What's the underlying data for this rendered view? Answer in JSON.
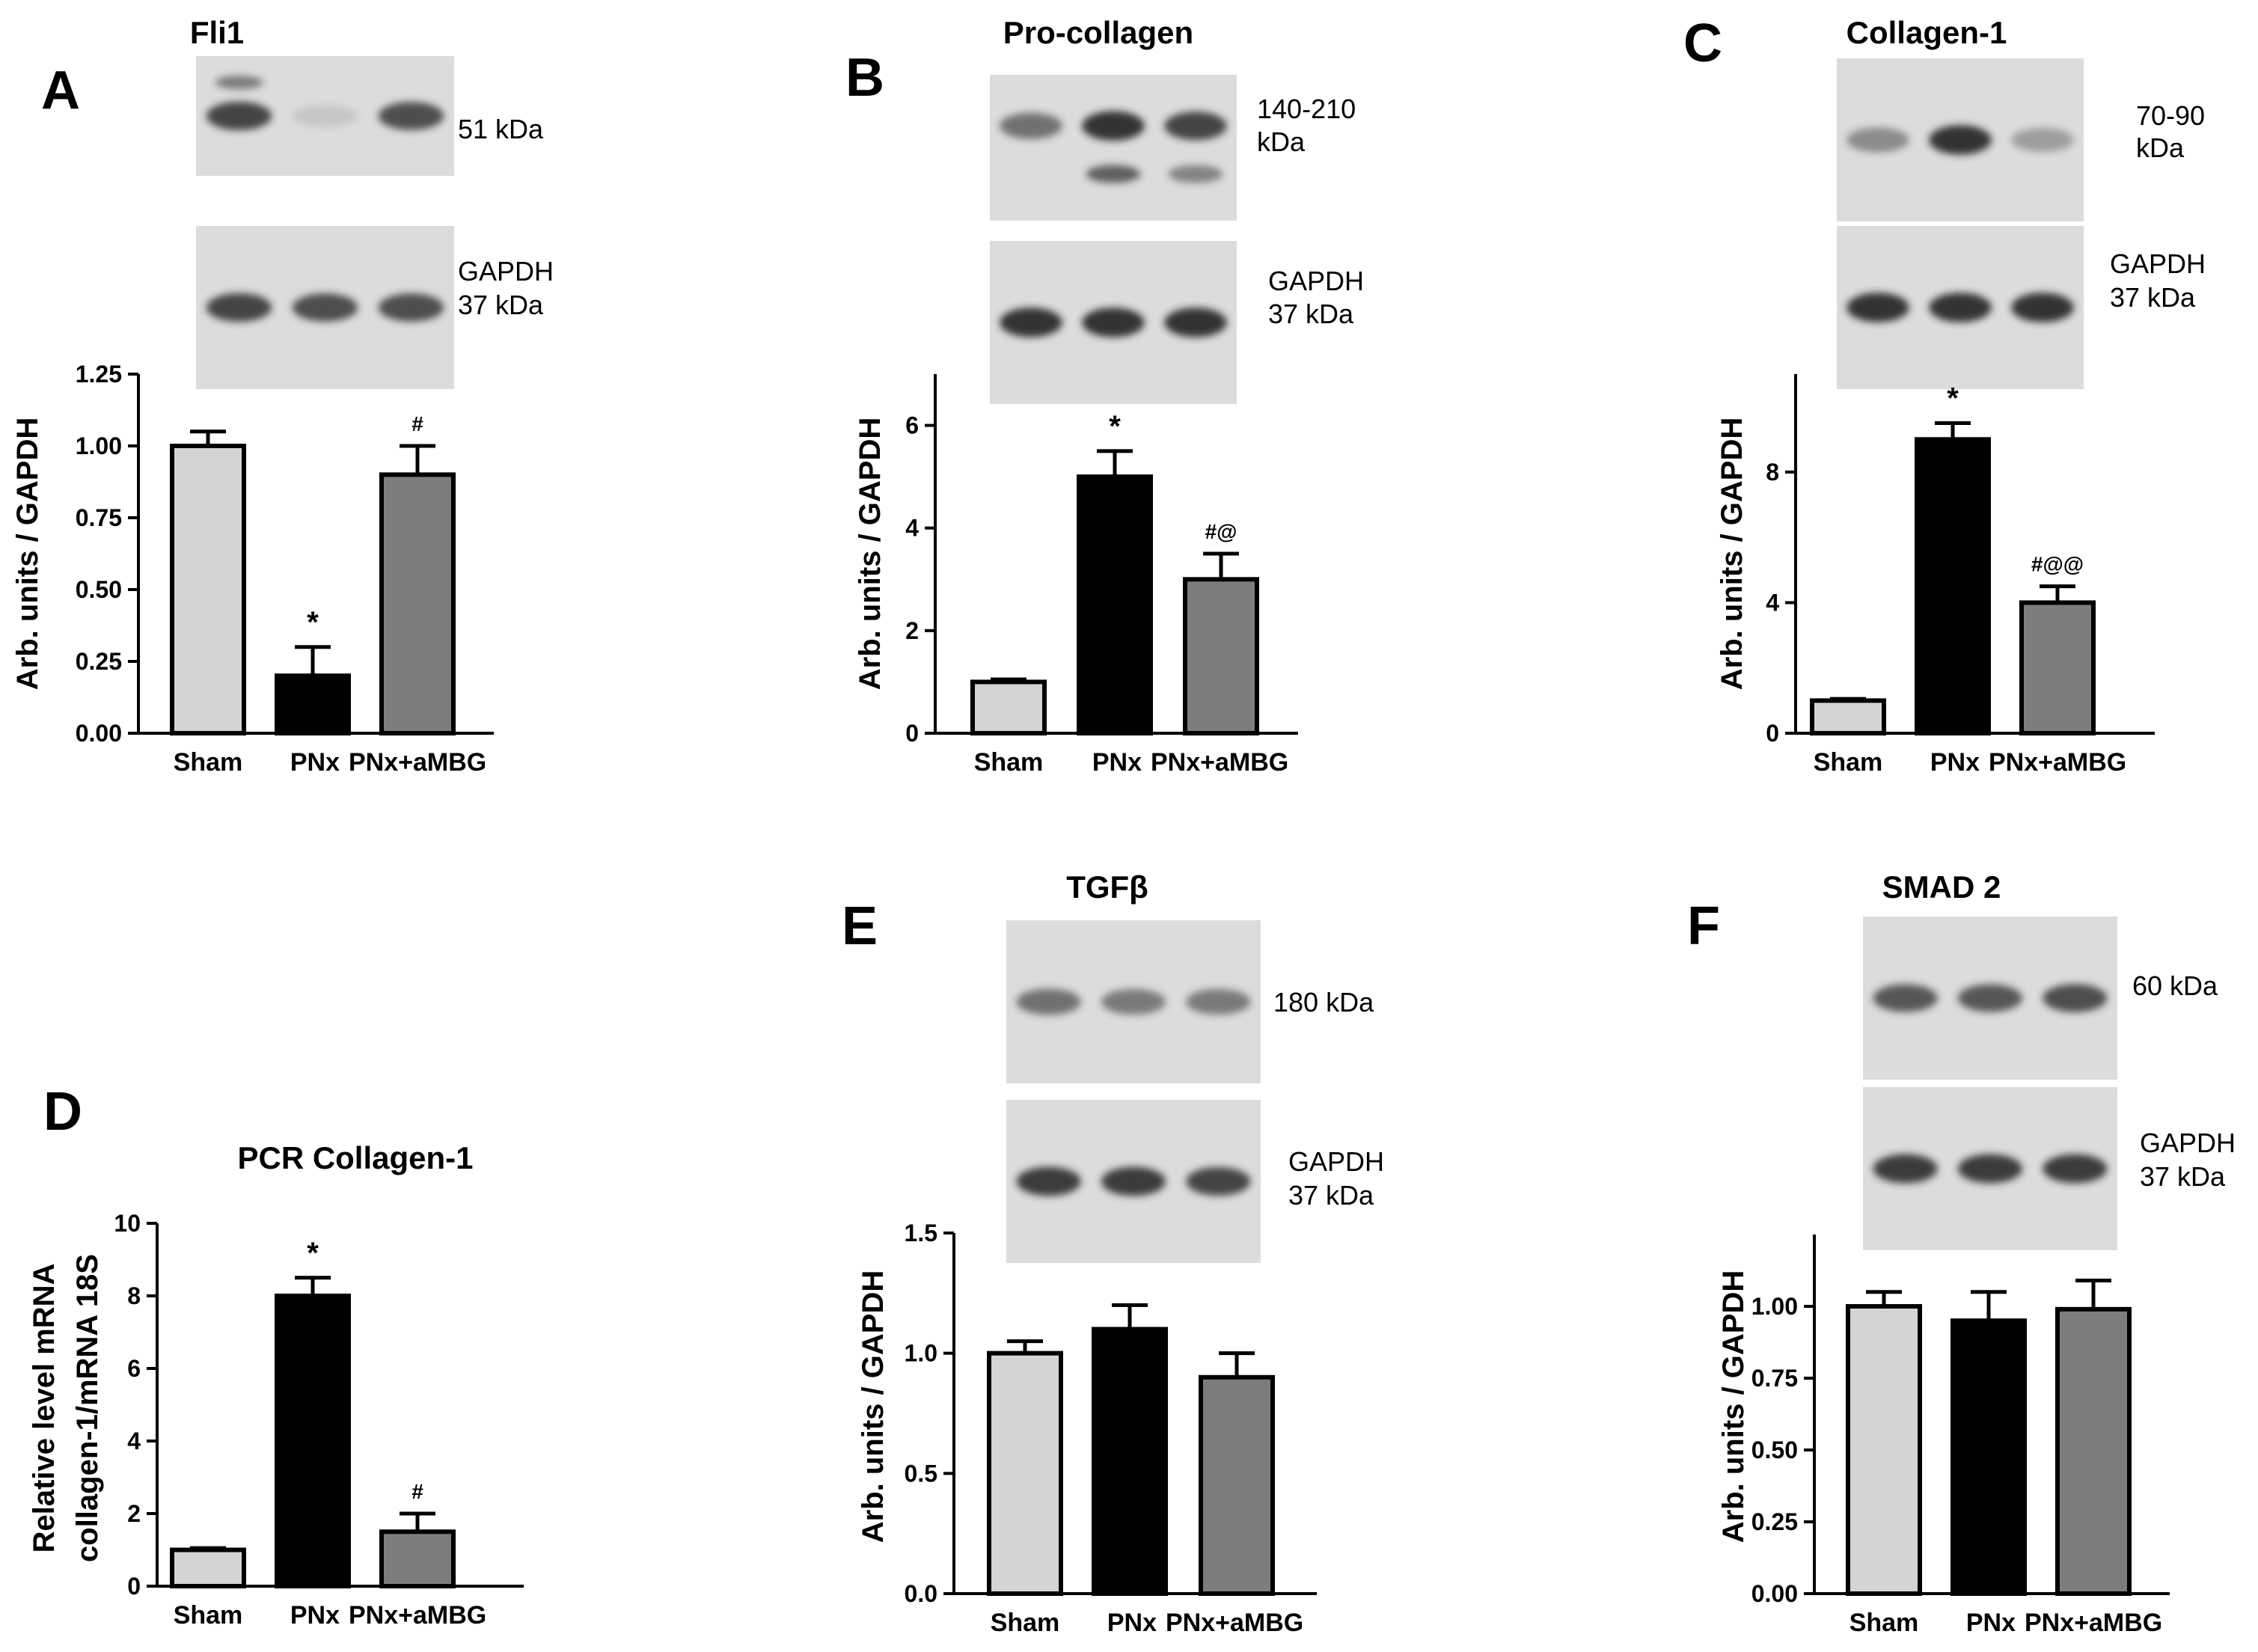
{
  "figure": {
    "group_categories": [
      "Sham",
      "PNx",
      "PNx+aMBG"
    ],
    "group_colors": [
      "#d4d4d4",
      "#000000",
      "#7d7d7d"
    ],
    "blot_background": "#dcdcdc",
    "band_color": "#2a2a2a"
  },
  "chart_data": [
    {
      "panel_letter": "A",
      "type": "bar",
      "title": "Fli1",
      "categories": [
        "Sham",
        "PNx",
        "PNx+aMBG"
      ],
      "values": [
        1.0,
        0.2,
        0.9
      ],
      "errors": [
        0.05,
        0.1,
        0.1
      ],
      "annotations": [
        "",
        "*",
        "#"
      ],
      "ylabel": "Arb. units / GAPDH",
      "ylim": [
        0,
        1.25
      ],
      "yticks": [
        "0.00",
        "0.25",
        "0.50",
        "0.75",
        "1.00",
        "1.25"
      ],
      "blots": [
        {
          "label_lines": [
            "51 kDa"
          ],
          "band_intensity": [
            0.85,
            0.12,
            0.8
          ],
          "extra_band_lane0": true
        },
        {
          "label_lines": [
            "GAPDH",
            "37 kDa"
          ],
          "band_intensity": [
            0.85,
            0.8,
            0.8
          ]
        }
      ]
    },
    {
      "panel_letter": "B",
      "type": "bar",
      "title": "Pro-collagen",
      "categories": [
        "Sham",
        "PNx",
        "PNx+aMBG"
      ],
      "values": [
        1.0,
        5.0,
        3.0
      ],
      "errors": [
        0.05,
        0.5,
        0.5
      ],
      "annotations": [
        "",
        "*",
        "#@"
      ],
      "ylabel": "Arb. units / GAPDH",
      "ylim": [
        0,
        7
      ],
      "yticks": [
        "0",
        "2",
        "4",
        "6"
      ],
      "blots": [
        {
          "label_lines": [
            "140-210",
            "kDa"
          ],
          "band_intensity": [
            0.6,
            0.95,
            0.85
          ],
          "second_band": [
            0,
            0.7,
            0.5
          ]
        },
        {
          "label_lines": [
            "GAPDH",
            "37 kDa"
          ],
          "band_intensity": [
            0.95,
            0.95,
            0.95
          ]
        }
      ]
    },
    {
      "panel_letter": "C",
      "type": "bar",
      "title": "Collagen-1",
      "categories": [
        "Sham",
        "PNx",
        "PNx+aMBG"
      ],
      "values": [
        1.0,
        9.0,
        4.0
      ],
      "errors": [
        0.05,
        0.5,
        0.5
      ],
      "annotations": [
        "",
        "*",
        "#@@"
      ],
      "ylabel": "Arb. units / GAPDH",
      "ylim": [
        0,
        11
      ],
      "yticks": [
        "0",
        "4",
        "8"
      ],
      "blots": [
        {
          "label_lines": [
            "70-90",
            "kDa"
          ],
          "band_intensity": [
            0.45,
            0.95,
            0.35
          ]
        },
        {
          "label_lines": [
            "GAPDH",
            "37 kDa"
          ],
          "band_intensity": [
            0.95,
            0.95,
            0.95
          ]
        }
      ]
    },
    {
      "panel_letter": "D",
      "type": "bar",
      "title": "PCR Collagen-1",
      "categories": [
        "Sham",
        "PNx",
        "PNx+aMBG"
      ],
      "values": [
        1.0,
        8.0,
        1.5
      ],
      "errors": [
        0.05,
        0.5,
        0.5
      ],
      "annotations": [
        "",
        "*",
        "#"
      ],
      "ylabel_lines": [
        "Relative level mRNA",
        "collagen-1/mRNA 18S"
      ],
      "ylim": [
        0,
        10
      ],
      "yticks": [
        "0",
        "2",
        "4",
        "6",
        "8",
        "10"
      ],
      "blots": []
    },
    {
      "panel_letter": "E",
      "type": "bar",
      "title": "TGFβ",
      "categories": [
        "Sham",
        "PNx",
        "PNx+aMBG"
      ],
      "values": [
        1.0,
        1.1,
        0.9
      ],
      "errors": [
        0.05,
        0.1,
        0.1
      ],
      "annotations": [
        "",
        "",
        ""
      ],
      "ylabel": "Arb. units / GAPDH",
      "ylim": [
        0,
        1.5
      ],
      "yticks": [
        "0.0",
        "0.5",
        "1.0",
        "1.5"
      ],
      "blots": [
        {
          "label_lines": [
            "180 kDa"
          ],
          "band_intensity": [
            0.6,
            0.55,
            0.55
          ]
        },
        {
          "label_lines": [
            "GAPDH",
            "37 kDa"
          ],
          "band_intensity": [
            0.9,
            0.9,
            0.85
          ]
        }
      ]
    },
    {
      "panel_letter": "F",
      "type": "bar",
      "title": "SMAD 2",
      "categories": [
        "Sham",
        "PNx",
        "PNx+aMBG"
      ],
      "values": [
        1.0,
        0.95,
        0.99
      ],
      "errors": [
        0.05,
        0.1,
        0.1
      ],
      "annotations": [
        "",
        "",
        ""
      ],
      "ylabel": "Arb. units / GAPDH",
      "ylim": [
        0,
        1.25
      ],
      "yticks": [
        "0.00",
        "0.25",
        "0.50",
        "0.75",
        "1.00"
      ],
      "blots": [
        {
          "label_lines": [
            "60 kDa"
          ],
          "band_intensity": [
            0.75,
            0.75,
            0.8
          ]
        },
        {
          "label_lines": [
            "GAPDH",
            "37 kDa"
          ],
          "band_intensity": [
            0.9,
            0.9,
            0.9
          ]
        }
      ]
    }
  ]
}
